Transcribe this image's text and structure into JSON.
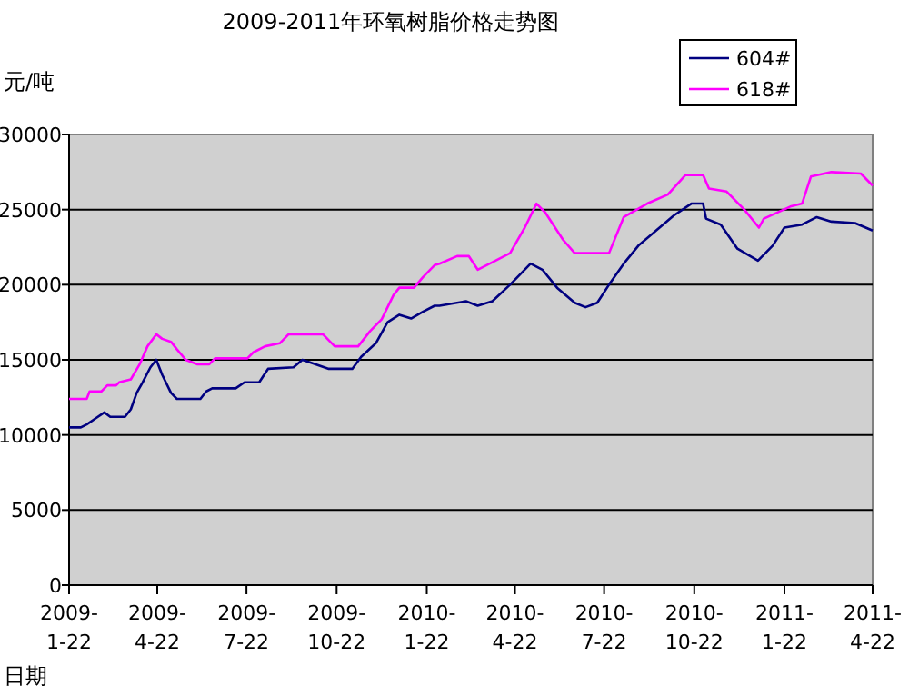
{
  "chart_data": {
    "type": "line",
    "title": "2009-2011年环氧树脂价格走势图",
    "ylabel": "元/吨",
    "xlabel": "日期",
    "xlim": [
      "2009-01-22",
      "2011-04-22"
    ],
    "xticks": [
      {
        "value": "2009-01-22",
        "label": "2009-\n1-22"
      },
      {
        "value": "2009-04-22",
        "label": "2009-\n4-22"
      },
      {
        "value": "2009-07-22",
        "label": "2009-\n7-22"
      },
      {
        "value": "2009-10-22",
        "label": "2009-\n10-22"
      },
      {
        "value": "2010-01-22",
        "label": "2010-\n1-22"
      },
      {
        "value": "2010-04-22",
        "label": "2010-\n4-22"
      },
      {
        "value": "2010-07-22",
        "label": "2010-\n7-22"
      },
      {
        "value": "2010-10-22",
        "label": "2010-\n10-22"
      },
      {
        "value": "2011-01-22",
        "label": "2011-\n1-22"
      },
      {
        "value": "2011-04-22",
        "label": "2011-\n4-22"
      }
    ],
    "ylim": [
      0,
      30000
    ],
    "yticks": [
      0,
      5000,
      10000,
      15000,
      20000,
      25000,
      30000
    ],
    "grid": "y",
    "legend": "top right",
    "marker": "none",
    "line_style": "solid",
    "series": [
      {
        "name": "604#",
        "color": "#000080",
        "x": [
          "2009-01-22",
          "2009-02-03",
          "2009-02-09",
          "2009-02-18",
          "2009-02-27",
          "2009-03-05",
          "2009-03-20",
          "2009-03-26",
          "2009-04-01",
          "2009-04-07",
          "2009-04-15",
          "2009-04-21",
          "2009-04-27",
          "2009-05-06",
          "2009-05-12",
          "2009-06-05",
          "2009-06-11",
          "2009-06-17",
          "2009-07-11",
          "2009-07-20",
          "2009-08-04",
          "2009-08-13",
          "2009-09-08",
          "2009-09-17",
          "2009-09-26",
          "2009-10-14",
          "2009-11-07",
          "2009-11-16",
          "2009-12-01",
          "2009-12-13",
          "2009-12-25",
          "2010-01-06",
          "2010-01-18",
          "2010-01-30",
          "2010-02-04",
          "2010-03-03",
          "2010-03-15",
          "2010-03-30",
          "2010-04-17",
          "2010-05-08",
          "2010-05-20",
          "2010-06-04",
          "2010-06-22",
          "2010-07-03",
          "2010-07-15",
          "2010-07-27",
          "2010-08-11",
          "2010-08-26",
          "2010-09-13",
          "2010-10-01",
          "2010-10-19",
          "2010-10-31",
          "2010-11-03",
          "2010-11-18",
          "2010-12-05",
          "2010-12-26",
          "2011-01-10",
          "2011-01-22",
          "2011-02-09",
          "2011-02-24",
          "2011-03-11",
          "2011-04-04",
          "2011-04-22"
        ],
        "values": [
          10500,
          10500,
          10700,
          11100,
          11500,
          11200,
          11200,
          11700,
          12800,
          13500,
          14500,
          15000,
          14000,
          12800,
          12400,
          12400,
          12900,
          13100,
          13100,
          13500,
          13500,
          14400,
          14500,
          15000,
          14800,
          14400,
          14400,
          15200,
          16100,
          17500,
          18000,
          17750,
          18200,
          18600,
          18600,
          18900,
          18600,
          18900,
          20000,
          21400,
          21000,
          19800,
          18800,
          18500,
          18800,
          20000,
          21400,
          22600,
          23600,
          24600,
          25400,
          25400,
          24400,
          24000,
          22400,
          21600,
          22600,
          23800,
          24000,
          24500,
          24200,
          24100,
          23600
        ]
      },
      {
        "name": "618#",
        "color": "#ff00ff",
        "x": [
          "2009-01-22",
          "2009-02-09",
          "2009-02-12",
          "2009-02-24",
          "2009-03-02",
          "2009-03-11",
          "2009-03-14",
          "2009-03-26",
          "2009-04-04",
          "2009-04-12",
          "2009-04-21",
          "2009-04-27",
          "2009-05-06",
          "2009-05-12",
          "2009-05-21",
          "2009-06-02",
          "2009-06-14",
          "2009-06-20",
          "2009-07-23",
          "2009-07-29",
          "2009-08-10",
          "2009-08-25",
          "2009-09-03",
          "2009-10-08",
          "2009-10-20",
          "2009-11-13",
          "2009-11-25",
          "2009-12-07",
          "2009-12-19",
          "2009-12-25",
          "2010-01-09",
          "2010-01-18",
          "2010-01-30",
          "2010-02-04",
          "2010-02-22",
          "2010-03-06",
          "2010-03-15",
          "2010-03-30",
          "2010-04-17",
          "2010-05-02",
          "2010-05-14",
          "2010-05-23",
          "2010-06-10",
          "2010-06-22",
          "2010-07-27",
          "2010-08-11",
          "2010-09-04",
          "2010-09-25",
          "2010-10-13",
          "2010-10-31",
          "2010-11-06",
          "2010-11-24",
          "2010-12-12",
          "2010-12-27",
          "2011-01-01",
          "2011-01-28",
          "2011-02-09",
          "2011-02-18",
          "2011-03-11",
          "2011-04-10",
          "2011-04-22"
        ],
        "values": [
          12400,
          12400,
          12900,
          12900,
          13300,
          13300,
          13500,
          13700,
          14700,
          15900,
          16700,
          16400,
          16200,
          15700,
          15000,
          14700,
          14700,
          15100,
          15100,
          15500,
          15900,
          16100,
          16700,
          16700,
          15900,
          15900,
          16900,
          17700,
          19300,
          19800,
          19800,
          20500,
          21300,
          21400,
          21900,
          21900,
          21000,
          21500,
          22100,
          23800,
          25400,
          24800,
          23000,
          22100,
          22100,
          24500,
          25400,
          26000,
          27300,
          27300,
          26400,
          26200,
          25000,
          23800,
          24400,
          25200,
          25400,
          27200,
          27500,
          27400,
          26600
        ]
      }
    ]
  }
}
